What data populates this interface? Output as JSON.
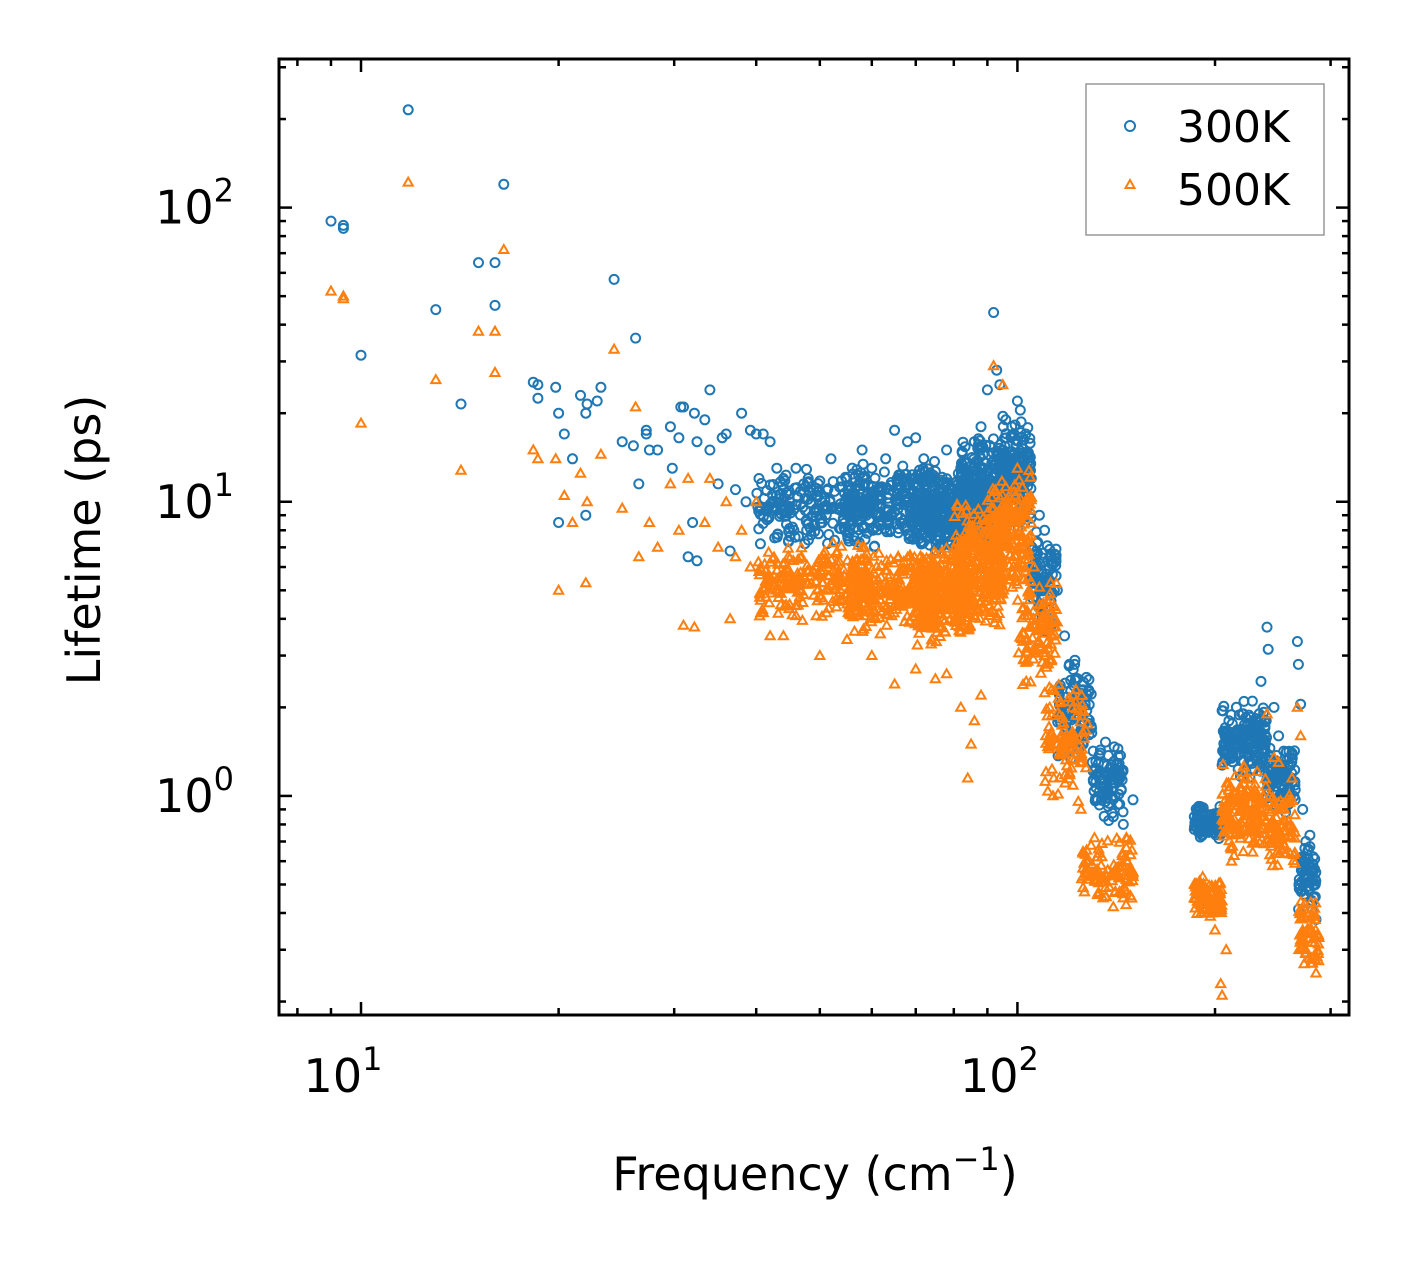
{
  "chart_data": {
    "type": "scatter",
    "title": "",
    "xlabel": "Frequency (cm",
    "xlabel_sup": "−1",
    "xlabel_end": ")",
    "ylabel": "Lifetime (ps)",
    "xscale": "log",
    "yscale": "log",
    "xlim": [
      7.5,
      320
    ],
    "ylim": [
      0.18,
      320
    ],
    "x_ticks": [
      {
        "value": 10,
        "base": "10",
        "exp": "1"
      },
      {
        "value": 100,
        "base": "10",
        "exp": "2"
      }
    ],
    "y_ticks": [
      {
        "value": 1,
        "base": "10",
        "exp": "0"
      },
      {
        "value": 10,
        "base": "10",
        "exp": "1"
      },
      {
        "value": 100,
        "base": "10",
        "exp": "2"
      }
    ],
    "legend_position": "top-right",
    "series": [
      {
        "name": "300K",
        "marker": "circle",
        "color": "#1f77b4",
        "points": [
          [
            9.0,
            90
          ],
          [
            9.4,
            87
          ],
          [
            9.4,
            85
          ],
          [
            10.0,
            31.5
          ],
          [
            11.8,
            215
          ],
          [
            13.0,
            45
          ],
          [
            14.2,
            21.5
          ],
          [
            15.1,
            65
          ],
          [
            16.0,
            46.5
          ],
          [
            16.0,
            65
          ],
          [
            16.5,
            120
          ],
          [
            18.3,
            25.5
          ],
          [
            18.6,
            25
          ],
          [
            18.6,
            22.5
          ],
          [
            19.8,
            24.5
          ],
          [
            20.0,
            8.5
          ],
          [
            20.0,
            20
          ],
          [
            20.4,
            17
          ],
          [
            21.0,
            14
          ],
          [
            21.6,
            23
          ],
          [
            22.0,
            20
          ],
          [
            22.0,
            9
          ],
          [
            22.1,
            21.5
          ],
          [
            22.9,
            22
          ],
          [
            23.2,
            24.5
          ],
          [
            24.3,
            57
          ],
          [
            25.0,
            16
          ],
          [
            26.0,
            15.5
          ],
          [
            26.2,
            36
          ],
          [
            26.5,
            11.5
          ],
          [
            27.2,
            17.5
          ],
          [
            27.2,
            17
          ],
          [
            27.5,
            15
          ],
          [
            28.3,
            15
          ],
          [
            29.6,
            18
          ],
          [
            29.8,
            13
          ],
          [
            30.5,
            16.5
          ],
          [
            30.7,
            21
          ],
          [
            31.0,
            21
          ],
          [
            31.5,
            6.5
          ],
          [
            32.0,
            8.5
          ],
          [
            32.2,
            20
          ],
          [
            32.5,
            6.3
          ],
          [
            32.5,
            16
          ],
          [
            33.4,
            19
          ],
          [
            34.0,
            24
          ],
          [
            34.0,
            15
          ],
          [
            35.0,
            11.5
          ],
          [
            35.5,
            16.5
          ],
          [
            36.0,
            17
          ],
          [
            36.5,
            6.8
          ],
          [
            37.2,
            11
          ],
          [
            38.0,
            20
          ],
          [
            38.6,
            10
          ],
          [
            39.2,
            17.5
          ],
          [
            40.0,
            17
          ],
          [
            40.4,
            12
          ],
          [
            41.0,
            17
          ],
          [
            42.0,
            16
          ],
          [
            43.0,
            13
          ],
          [
            44.0,
            12
          ],
          [
            45.0,
            10
          ],
          [
            46.0,
            13
          ],
          [
            48.0,
            12
          ],
          [
            50.0,
            9
          ],
          [
            52.0,
            14
          ],
          [
            55.0,
            12
          ],
          [
            58.0,
            15
          ],
          [
            60.0,
            13
          ],
          [
            63.0,
            14
          ],
          [
            65.0,
            17.5
          ],
          [
            68.0,
            16
          ],
          [
            70.0,
            16.5
          ],
          [
            72.0,
            14
          ],
          [
            75.0,
            12
          ],
          [
            78.0,
            15
          ],
          [
            82.0,
            13
          ],
          [
            86.0,
            16
          ],
          [
            88.0,
            18
          ],
          [
            90.0,
            24
          ],
          [
            92.0,
            44
          ],
          [
            93.0,
            28
          ],
          [
            94.0,
            25
          ],
          [
            96.0,
            19
          ],
          [
            98.0,
            18
          ],
          [
            100.0,
            22
          ],
          [
            101.0,
            20.5
          ],
          [
            103.0,
            17
          ],
          [
            105.0,
            12
          ],
          [
            108.0,
            9
          ],
          [
            110.0,
            8
          ],
          [
            112.0,
            6.5
          ],
          [
            115.0,
            5
          ],
          [
            118.0,
            3.5
          ],
          [
            120.0,
            2.8
          ],
          [
            123.0,
            2.0
          ],
          [
            126.0,
            1.6
          ],
          [
            130.0,
            1.3
          ],
          [
            135.0,
            1.0
          ],
          [
            140.0,
            0.85
          ],
          [
            145.0,
            0.8
          ],
          [
            150.0,
            0.97
          ],
          [
            186.0,
            0.85
          ],
          [
            190.0,
            0.92
          ],
          [
            195.0,
            0.8
          ],
          [
            200.0,
            0.75
          ],
          [
            205.0,
            1.95
          ],
          [
            210.0,
            1.8
          ],
          [
            215.0,
            1.5
          ],
          [
            220.0,
            1.9
          ],
          [
            228.0,
            2.1
          ],
          [
            235.0,
            2.45
          ],
          [
            240.0,
            3.75
          ],
          [
            241.0,
            3.15
          ],
          [
            246.0,
            2.0
          ],
          [
            250.0,
            1.6
          ],
          [
            255.0,
            1.2
          ],
          [
            262.0,
            1.4
          ],
          [
            267.0,
            3.35
          ],
          [
            268.0,
            2.8
          ],
          [
            270.0,
            2.05
          ],
          [
            272.0,
            0.9
          ],
          [
            275.0,
            0.7
          ],
          [
            280.0,
            0.55
          ],
          [
            283.0,
            0.45
          ],
          [
            285.0,
            0.38
          ]
        ],
        "clusters": [
          {
            "x": [
              40,
              60
            ],
            "y": [
              7,
              13
            ],
            "n": 220
          },
          {
            "x": [
              55,
              75
            ],
            "y": [
              7,
              14
            ],
            "n": 260
          },
          {
            "x": [
              70,
              85
            ],
            "y": [
              6.5,
              13
            ],
            "n": 260
          },
          {
            "x": [
              82,
              96
            ],
            "y": [
              7,
              17
            ],
            "n": 320
          },
          {
            "x": [
              95,
              105
            ],
            "y": [
              8,
              20
            ],
            "n": 180
          },
          {
            "x": [
              105,
              115
            ],
            "y": [
              3.5,
              8
            ],
            "n": 90
          },
          {
            "x": [
              115,
              130
            ],
            "y": [
              1.3,
              3
            ],
            "n": 90
          },
          {
            "x": [
              130,
              145
            ],
            "y": [
              0.8,
              1.6
            ],
            "n": 100
          },
          {
            "x": [
              186,
              205
            ],
            "y": [
              0.7,
              0.95
            ],
            "n": 90
          },
          {
            "x": [
              205,
              240
            ],
            "y": [
              1.1,
              2.1
            ],
            "n": 170
          },
          {
            "x": [
              240,
              265
            ],
            "y": [
              0.85,
              1.5
            ],
            "n": 90
          },
          {
            "x": [
              268,
              285
            ],
            "y": [
              0.4,
              0.75
            ],
            "n": 60
          }
        ]
      },
      {
        "name": "500K",
        "marker": "triangle",
        "color": "#ff7f0e",
        "points": [
          [
            9.0,
            52
          ],
          [
            9.4,
            50
          ],
          [
            9.4,
            49
          ],
          [
            10.0,
            18.5
          ],
          [
            11.8,
            122
          ],
          [
            13.0,
            26
          ],
          [
            14.2,
            12.8
          ],
          [
            15.1,
            38
          ],
          [
            16.0,
            38
          ],
          [
            16.0,
            27.5
          ],
          [
            16.5,
            72
          ],
          [
            18.3,
            15
          ],
          [
            18.6,
            14
          ],
          [
            19.8,
            14
          ],
          [
            20.0,
            5
          ],
          [
            20.4,
            10.5
          ],
          [
            21.0,
            8.5
          ],
          [
            21.6,
            12.5
          ],
          [
            22.0,
            5.3
          ],
          [
            22.1,
            10
          ],
          [
            23.2,
            14.5
          ],
          [
            24.3,
            33
          ],
          [
            25.0,
            9.5
          ],
          [
            26.2,
            21
          ],
          [
            26.5,
            6.5
          ],
          [
            27.5,
            8.5
          ],
          [
            28.3,
            7
          ],
          [
            29.6,
            11.5
          ],
          [
            30.5,
            8
          ],
          [
            31.0,
            3.8
          ],
          [
            31.5,
            12
          ],
          [
            32.2,
            3.75
          ],
          [
            33.4,
            8.5
          ],
          [
            34.0,
            12
          ],
          [
            35.0,
            7
          ],
          [
            36.0,
            10
          ],
          [
            36.5,
            4
          ],
          [
            37.2,
            6.5
          ],
          [
            38.0,
            8
          ],
          [
            39.2,
            6
          ],
          [
            40.0,
            10
          ],
          [
            41.0,
            4.2
          ],
          [
            42.0,
            3.5
          ],
          [
            44.0,
            3.5
          ],
          [
            46.0,
            4.1
          ],
          [
            50.0,
            3
          ],
          [
            55.0,
            3.4
          ],
          [
            60.0,
            3
          ],
          [
            65.0,
            2.4
          ],
          [
            70.0,
            2.7
          ],
          [
            75.0,
            2.5
          ],
          [
            78.0,
            2.6
          ],
          [
            82.0,
            2.0
          ],
          [
            84.0,
            1.15
          ],
          [
            85.0,
            1.5
          ],
          [
            86.0,
            1.8
          ],
          [
            88.0,
            2.2
          ],
          [
            92.0,
            29
          ],
          [
            95.0,
            25
          ],
          [
            100.0,
            13
          ],
          [
            103.0,
            9
          ],
          [
            106.0,
            6
          ],
          [
            110.0,
            3
          ],
          [
            112.0,
            2.0
          ],
          [
            115.0,
            1.5
          ],
          [
            120.0,
            1.2
          ],
          [
            125.0,
            0.9
          ],
          [
            130.0,
            0.55
          ],
          [
            135.0,
            0.45
          ],
          [
            140.0,
            0.42
          ],
          [
            145.0,
            0.45
          ],
          [
            150.0,
            0.55
          ],
          [
            186.0,
            0.45
          ],
          [
            190.0,
            0.5
          ],
          [
            195.0,
            0.4
          ],
          [
            200.0,
            0.35
          ],
          [
            204.0,
            0.23
          ],
          [
            205.0,
            0.21
          ],
          [
            208.0,
            0.3
          ],
          [
            212.0,
            0.6
          ],
          [
            218.0,
            0.75
          ],
          [
            228.0,
            0.9
          ],
          [
            235.0,
            0.85
          ],
          [
            240.0,
            1.9
          ],
          [
            246.0,
            1.35
          ],
          [
            250.0,
            1.3
          ],
          [
            255.0,
            0.9
          ],
          [
            262.0,
            1.15
          ],
          [
            267.0,
            2.0
          ],
          [
            270.0,
            1.6
          ],
          [
            272.0,
            0.35
          ],
          [
            275.0,
            0.3
          ],
          [
            280.0,
            0.27
          ],
          [
            285.0,
            0.25
          ]
        ],
        "clusters": [
          {
            "x": [
              40,
              60
            ],
            "y": [
              3.8,
              7.5
            ],
            "n": 240
          },
          {
            "x": [
              55,
              75
            ],
            "y": [
              3.5,
              7
            ],
            "n": 280
          },
          {
            "x": [
              70,
              85
            ],
            "y": [
              3.2,
              7
            ],
            "n": 280
          },
          {
            "x": [
              80,
              95
            ],
            "y": [
              3.5,
              10
            ],
            "n": 320
          },
          {
            "x": [
              90,
              105
            ],
            "y": [
              4.5,
              13
            ],
            "n": 220
          },
          {
            "x": [
              100,
              115
            ],
            "y": [
              2.2,
              6
            ],
            "n": 110
          },
          {
            "x": [
              110,
              128
            ],
            "y": [
              0.9,
              2.5
            ],
            "n": 100
          },
          {
            "x": [
              125,
              150
            ],
            "y": [
              0.42,
              0.75
            ],
            "n": 110
          },
          {
            "x": [
              186,
              205
            ],
            "y": [
              0.38,
              0.55
            ],
            "n": 90
          },
          {
            "x": [
              205,
              240
            ],
            "y": [
              0.6,
              1.3
            ],
            "n": 170
          },
          {
            "x": [
              240,
              265
            ],
            "y": [
              0.55,
              1.05
            ],
            "n": 90
          },
          {
            "x": [
              268,
              288
            ],
            "y": [
              0.26,
              0.45
            ],
            "n": 60
          }
        ]
      }
    ]
  }
}
